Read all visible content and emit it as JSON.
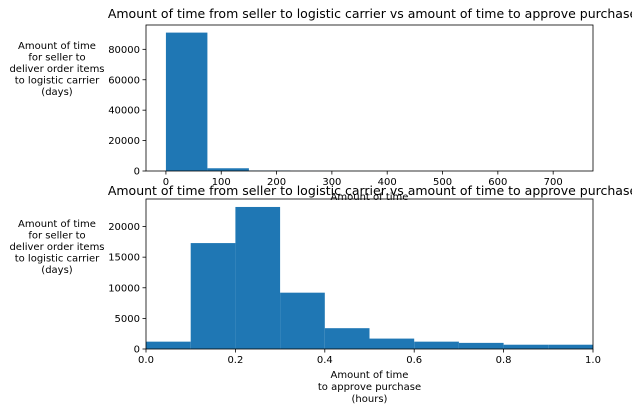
{
  "chart_data": [
    {
      "type": "bar",
      "title": "Amount of time from seller to logistic carrier vs amount of time to approve purchase",
      "xlabel": "Amount of time",
      "ylabel_lines": [
        "Amount of time",
        "for seller to",
        "deliver order items",
        "to logistic carrier",
        "(days)"
      ],
      "xlim": [
        -36,
        772
      ],
      "ylim": [
        0,
        96000
      ],
      "xticks": [
        0,
        100,
        200,
        300,
        400,
        500,
        600,
        700
      ],
      "yticks": [
        0,
        20000,
        40000,
        60000,
        80000
      ],
      "bin_edges": [
        0,
        75,
        150,
        225,
        300,
        375,
        450,
        525,
        600,
        675,
        750
      ],
      "values": [
        91000,
        1800,
        300,
        80,
        40,
        25,
        15,
        10,
        8,
        5
      ],
      "color": "#1f77b4",
      "grid": false
    },
    {
      "type": "bar",
      "title": "Amount of time from seller to logistic carrier vs amount of time to approve purchase",
      "xlabel_lines": [
        "Amount of time",
        "to approve purchase",
        "(hours)"
      ],
      "ylabel_lines": [
        "Amount of time",
        "for seller to",
        "deliver order items",
        "to logistic carrier",
        "(days)"
      ],
      "xlim": [
        0,
        1.0
      ],
      "ylim": [
        0,
        24500
      ],
      "xticks": [
        0.0,
        0.2,
        0.4,
        0.6,
        0.8,
        1.0
      ],
      "yticks": [
        0,
        5000,
        10000,
        15000,
        20000
      ],
      "bin_edges": [
        0.0,
        0.1,
        0.2,
        0.3,
        0.4,
        0.5,
        0.6,
        0.7,
        0.8,
        0.9,
        1.0
      ],
      "values": [
        1200,
        17300,
        23200,
        9200,
        3400,
        1700,
        1200,
        1000,
        700,
        700
      ],
      "color": "#1f77b4",
      "grid": false
    }
  ]
}
